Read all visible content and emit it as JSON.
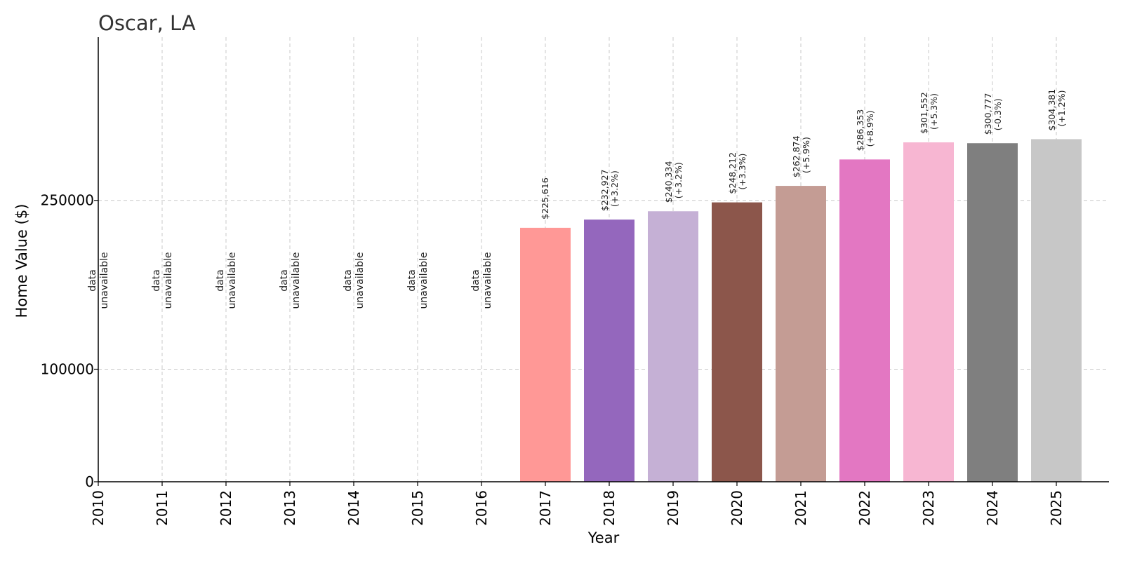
{
  "chart_data": {
    "type": "bar",
    "title": "Oscar, LA",
    "xlabel": "Year",
    "ylabel": "Home Value ($)",
    "categories": [
      "2010",
      "2011",
      "2012",
      "2013",
      "2014",
      "2015",
      "2016",
      "2017",
      "2018",
      "2019",
      "2020",
      "2021",
      "2022",
      "2023",
      "2024",
      "2025"
    ],
    "values": [
      null,
      null,
      null,
      null,
      null,
      null,
      null,
      225616,
      232927,
      240334,
      248212,
      262874,
      286353,
      301552,
      300777,
      304381
    ],
    "value_labels": [
      "",
      "",
      "",
      "",
      "",
      "",
      "",
      "$225,616",
      "$232,927",
      "$240,334",
      "$248,212",
      "$262,874",
      "$286,353",
      "$301,552",
      "$300,777",
      "$304,381"
    ],
    "change_labels": [
      "",
      "",
      "",
      "",
      "",
      "",
      "",
      "",
      "(+3.2%)",
      "(+3.2%)",
      "(+3.3%)",
      "(+5.9%)",
      "(+8.9%)",
      "(+5.3%)",
      "(-0.3%)",
      "(+1.2%)"
    ],
    "missing_label_lines": [
      "data",
      "unavailable"
    ],
    "colors": [
      "#1f77b4",
      "#ff7f0e",
      "#2ca02c",
      "#d62728",
      "#9467bd",
      "#8c564b",
      "#e377c2",
      "#ff9896",
      "#9467bd",
      "#c5b0d5",
      "#8c564b",
      "#c49c94",
      "#e377c2",
      "#f7b6d2",
      "#7f7f7f",
      "#c7c7c7"
    ],
    "ylim": [
      0,
      395000
    ],
    "yticks": [
      0,
      100000,
      250000
    ],
    "ytick_labels": [
      "0",
      "100000",
      "250000"
    ],
    "grid": true
  }
}
